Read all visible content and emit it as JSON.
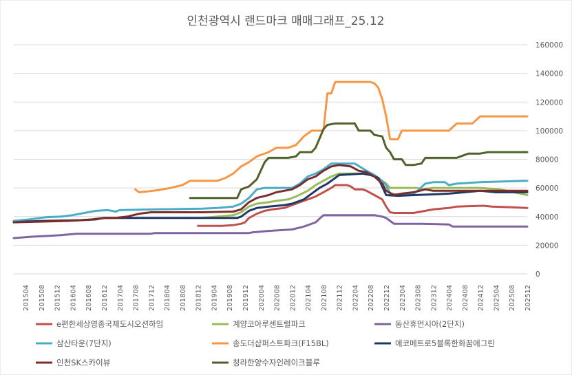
{
  "chart_data": {
    "type": "line",
    "title": "인천광역시 랜드마크 매매그래프_25.12",
    "xlabel": "",
    "ylabel": "",
    "ylim": [
      0,
      160000
    ],
    "y_ticks": [
      "0",
      "20000",
      "40000",
      "60000",
      "80000",
      "100000",
      "120000",
      "140000",
      "160000"
    ],
    "y_tick_values": [
      0,
      20000,
      40000,
      60000,
      80000,
      100000,
      120000,
      140000,
      160000
    ],
    "y_axis_side": "right",
    "grid": true,
    "legend_position": "bottom",
    "x_start": "201501",
    "x_end": "202512",
    "x_ticks": [
      "201504",
      "201508",
      "201512",
      "201604",
      "201608",
      "201612",
      "201704",
      "201708",
      "201712",
      "201804",
      "201808",
      "201812",
      "201904",
      "201908",
      "201912",
      "202004",
      "202008",
      "202012",
      "202104",
      "202108",
      "202112",
      "202204",
      "202208",
      "202212",
      "202304",
      "202308",
      "202312",
      "202404",
      "202408",
      "202412",
      "202504",
      "202508",
      "202512"
    ],
    "series": [
      {
        "name": "e편한세상영종국제도시오션하임",
        "color": "#c0504d",
        "points": [
          [
            "201812",
            33500
          ],
          [
            "201906",
            33500
          ],
          [
            "201909",
            34000
          ],
          [
            "201911",
            35000
          ],
          [
            "201912",
            36000
          ],
          [
            "202001",
            39000
          ],
          [
            "202003",
            42000
          ],
          [
            "202005",
            44000
          ],
          [
            "202007",
            45000
          ],
          [
            "202010",
            46000
          ],
          [
            "202012",
            48000
          ],
          [
            "202102",
            50000
          ],
          [
            "202104",
            52000
          ],
          [
            "202106",
            54000
          ],
          [
            "202108",
            57000
          ],
          [
            "202110",
            60000
          ],
          [
            "202111",
            62000
          ],
          [
            "202202",
            62000
          ],
          [
            "202203",
            61000
          ],
          [
            "202204",
            59000
          ],
          [
            "202206",
            59000
          ],
          [
            "202207",
            58000
          ],
          [
            "202209",
            55000
          ],
          [
            "202211",
            52000
          ],
          [
            "202212",
            47000
          ],
          [
            "202301",
            43000
          ],
          [
            "202302",
            42500
          ],
          [
            "202307",
            42500
          ],
          [
            "202310",
            44000
          ],
          [
            "202312",
            45000
          ],
          [
            "202404",
            46000
          ],
          [
            "202406",
            47000
          ],
          [
            "202412",
            47500
          ],
          [
            "202501",
            47500
          ],
          [
            "202503",
            47000
          ],
          [
            "202508",
            46500
          ],
          [
            "202512",
            46000
          ]
        ]
      },
      {
        "name": "계양코아루센트럴파크",
        "color": "#9bbb59",
        "points": [
          [
            "201901",
            39000
          ],
          [
            "201905",
            40000
          ],
          [
            "201909",
            41000
          ],
          [
            "201911",
            43000
          ],
          [
            "202001",
            47000
          ],
          [
            "202003",
            49000
          ],
          [
            "202006",
            50000
          ],
          [
            "202008",
            51000
          ],
          [
            "202011",
            52000
          ],
          [
            "202101",
            54000
          ],
          [
            "202104",
            58000
          ],
          [
            "202106",
            62000
          ],
          [
            "202108",
            65000
          ],
          [
            "202110",
            68000
          ],
          [
            "202112",
            70000
          ],
          [
            "202204",
            70000
          ],
          [
            "202207",
            70000
          ],
          [
            "202209",
            69000
          ],
          [
            "202210",
            67000
          ],
          [
            "202212",
            63000
          ],
          [
            "202301",
            60000
          ],
          [
            "202308",
            60000
          ],
          [
            "202309",
            59000
          ],
          [
            "202312",
            60000
          ],
          [
            "202412",
            60000
          ],
          [
            "202505",
            59000
          ],
          [
            "202512",
            55000
          ]
        ]
      },
      {
        "name": "동산휴먼시아(2단지)",
        "color": "#8064a2",
        "points": [
          [
            "201501",
            25000
          ],
          [
            "201506",
            26000
          ],
          [
            "201510",
            26500
          ],
          [
            "201601",
            27000
          ],
          [
            "201605",
            28000
          ],
          [
            "201712",
            28000
          ],
          [
            "201801",
            28500
          ],
          [
            "202001",
            28500
          ],
          [
            "202002",
            29000
          ],
          [
            "202006",
            30000
          ],
          [
            "202012",
            31000
          ],
          [
            "202103",
            33000
          ],
          [
            "202106",
            36000
          ],
          [
            "202108",
            41000
          ],
          [
            "202209",
            41000
          ],
          [
            "202211",
            40000
          ],
          [
            "202212",
            39000
          ],
          [
            "202301",
            37000
          ],
          [
            "202302",
            35000
          ],
          [
            "202309",
            35000
          ],
          [
            "202404",
            34500
          ],
          [
            "202405",
            33000
          ],
          [
            "202512",
            33000
          ]
        ]
      },
      {
        "name": "삼산타운(7단지)",
        "color": "#4bacc6",
        "points": [
          [
            "201501",
            37000
          ],
          [
            "201505",
            38000
          ],
          [
            "201509",
            39500
          ],
          [
            "201601",
            40000
          ],
          [
            "201604",
            41000
          ],
          [
            "201607",
            42500
          ],
          [
            "201610",
            44000
          ],
          [
            "201701",
            44500
          ],
          [
            "201703",
            43500
          ],
          [
            "201704",
            44500
          ],
          [
            "201801",
            45000
          ],
          [
            "201901",
            45500
          ],
          [
            "201905",
            46000
          ],
          [
            "201909",
            47000
          ],
          [
            "201911",
            49000
          ],
          [
            "202001",
            53000
          ],
          [
            "202003",
            59000
          ],
          [
            "202005",
            60000
          ],
          [
            "202012",
            60000
          ],
          [
            "202102",
            63000
          ],
          [
            "202104",
            68000
          ],
          [
            "202106",
            70000
          ],
          [
            "202108",
            73000
          ],
          [
            "202110",
            77000
          ],
          [
            "202112",
            77000
          ],
          [
            "202204",
            77000
          ],
          [
            "202207",
            72000
          ],
          [
            "202209",
            69000
          ],
          [
            "202210",
            67000
          ],
          [
            "202212",
            62000
          ],
          [
            "202301",
            56000
          ],
          [
            "202304",
            55000
          ],
          [
            "202307",
            56000
          ],
          [
            "202308",
            58000
          ],
          [
            "202310",
            63000
          ],
          [
            "202312",
            64000
          ],
          [
            "202403",
            64000
          ],
          [
            "202404",
            62000
          ],
          [
            "202406",
            63000
          ],
          [
            "202412",
            64000
          ],
          [
            "202512",
            65000
          ]
        ]
      },
      {
        "name": "송도더샵퍼스트파크(F15BL)",
        "color": "#f79646",
        "points": [
          [
            "201708",
            59000
          ],
          [
            "201709",
            57000
          ],
          [
            "201711",
            57500
          ],
          [
            "201802",
            58500
          ],
          [
            "201805",
            60000
          ],
          [
            "201808",
            62000
          ],
          [
            "201810",
            65000
          ],
          [
            "201905",
            65000
          ],
          [
            "201907",
            67000
          ],
          [
            "201909",
            70000
          ],
          [
            "201911",
            75000
          ],
          [
            "202001",
            78000
          ],
          [
            "202003",
            82000
          ],
          [
            "202006",
            85000
          ],
          [
            "202008",
            88000
          ],
          [
            "202011",
            88000
          ],
          [
            "202101",
            90000
          ],
          [
            "202103",
            96000
          ],
          [
            "202105",
            100000
          ],
          [
            "202108",
            100000
          ],
          [
            "202109",
            126000
          ],
          [
            "202110",
            126000
          ],
          [
            "202111",
            134000
          ],
          [
            "202208",
            134000
          ],
          [
            "202209",
            133000
          ],
          [
            "202210",
            130000
          ],
          [
            "202211",
            122000
          ],
          [
            "202212",
            110000
          ],
          [
            "202301",
            94000
          ],
          [
            "202303",
            94000
          ],
          [
            "202304",
            100000
          ],
          [
            "202404",
            100000
          ],
          [
            "202406",
            105000
          ],
          [
            "202410",
            105000
          ],
          [
            "202412",
            110000
          ],
          [
            "202512",
            110000
          ]
        ]
      },
      {
        "name": "에코메트로5블록한화꿈에그린",
        "color": "#1f3864",
        "points": [
          [
            "201501",
            36000
          ],
          [
            "201504",
            36500
          ],
          [
            "201509",
            37000
          ],
          [
            "201606",
            37500
          ],
          [
            "201609",
            38000
          ],
          [
            "201612",
            39000
          ],
          [
            "201708",
            39000
          ],
          [
            "201901",
            39000
          ],
          [
            "201910",
            39000
          ],
          [
            "201911",
            40000
          ],
          [
            "202001",
            44000
          ],
          [
            "202003",
            46000
          ],
          [
            "202006",
            47000
          ],
          [
            "202010",
            48000
          ],
          [
            "202012",
            49000
          ],
          [
            "202103",
            52000
          ],
          [
            "202105",
            56000
          ],
          [
            "202107",
            60000
          ],
          [
            "202109",
            63000
          ],
          [
            "202111",
            67000
          ],
          [
            "202112",
            69000
          ],
          [
            "202206",
            70000
          ],
          [
            "202208",
            69000
          ],
          [
            "202210",
            67000
          ],
          [
            "202212",
            55000
          ],
          [
            "202303",
            54500
          ],
          [
            "202307",
            55000
          ],
          [
            "202312",
            55500
          ],
          [
            "202404",
            56000
          ],
          [
            "202408",
            57000
          ],
          [
            "202412",
            58000
          ],
          [
            "202504",
            57000
          ],
          [
            "202512",
            57000
          ]
        ]
      },
      {
        "name": "인천SK스카이뷰",
        "color": "#7b2c2c",
        "points": [
          [
            "201501",
            36000
          ],
          [
            "201603",
            37000
          ],
          [
            "201610",
            38000
          ],
          [
            "201612",
            39000
          ],
          [
            "201703",
            39000
          ],
          [
            "201706",
            40000
          ],
          [
            "201709",
            42000
          ],
          [
            "201712",
            43000
          ],
          [
            "201901",
            43000
          ],
          [
            "201909",
            43500
          ],
          [
            "201911",
            45000
          ],
          [
            "202001",
            50000
          ],
          [
            "202003",
            53000
          ],
          [
            "202006",
            55000
          ],
          [
            "202008",
            57000
          ],
          [
            "202010",
            58000
          ],
          [
            "202012",
            59000
          ],
          [
            "202102",
            62000
          ],
          [
            "202104",
            66000
          ],
          [
            "202106",
            68000
          ],
          [
            "202108",
            72000
          ],
          [
            "202110",
            75000
          ],
          [
            "202112",
            76000
          ],
          [
            "202203",
            75000
          ],
          [
            "202205",
            72000
          ],
          [
            "202207",
            71000
          ],
          [
            "202209",
            68000
          ],
          [
            "202211",
            63000
          ],
          [
            "202212",
            58000
          ],
          [
            "202302",
            55000
          ],
          [
            "202304",
            56000
          ],
          [
            "202307",
            57000
          ],
          [
            "202310",
            59000
          ],
          [
            "202312",
            58000
          ],
          [
            "202512",
            58000
          ]
        ]
      },
      {
        "name": "청라한양수자인레이크블루",
        "color": "#4f6228",
        "points": [
          [
            "201810",
            53000
          ],
          [
            "201910",
            53000
          ],
          [
            "201911",
            59000
          ],
          [
            "202001",
            61000
          ],
          [
            "202003",
            66000
          ],
          [
            "202005",
            78000
          ],
          [
            "202006",
            81000
          ],
          [
            "202011",
            81000
          ],
          [
            "202101",
            82000
          ],
          [
            "202102",
            85000
          ],
          [
            "202105",
            85000
          ],
          [
            "202106",
            88000
          ],
          [
            "202108",
            101000
          ],
          [
            "202109",
            104000
          ],
          [
            "202111",
            105000
          ],
          [
            "202204",
            105000
          ],
          [
            "202205",
            100000
          ],
          [
            "202208",
            100000
          ],
          [
            "202209",
            97000
          ],
          [
            "202211",
            96000
          ],
          [
            "202212",
            88000
          ],
          [
            "202301",
            85000
          ],
          [
            "202302",
            80000
          ],
          [
            "202304",
            80000
          ],
          [
            "202305",
            76000
          ],
          [
            "202307",
            76000
          ],
          [
            "202309",
            77000
          ],
          [
            "202310",
            81000
          ],
          [
            "202312",
            81000
          ],
          [
            "202406",
            81000
          ],
          [
            "202407",
            82000
          ],
          [
            "202409",
            84000
          ],
          [
            "202412",
            84000
          ],
          [
            "202502",
            85000
          ],
          [
            "202512",
            85000
          ]
        ]
      }
    ]
  }
}
